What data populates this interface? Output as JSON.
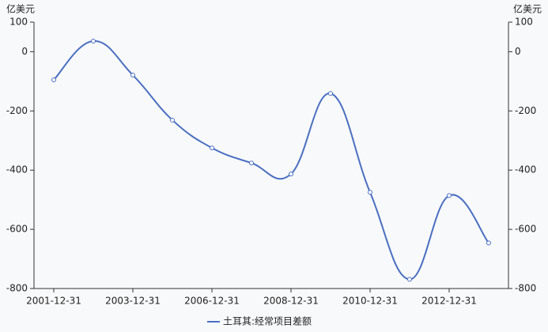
{
  "chart_data": {
    "type": "line",
    "y_label": "亿美元",
    "y2_label": "亿美元",
    "categories": [
      "2001-12-31",
      null,
      "2003-12-31",
      null,
      "2006-12-31",
      null,
      "2008-12-31",
      null,
      "2010-12-31",
      null,
      "2012-12-31",
      null
    ],
    "series": [
      {
        "name": "土耳其:经常项目差额",
        "color": "#4a6fc1",
        "values": [
          -95,
          36,
          -79,
          -231,
          -325,
          -376,
          -413,
          -141,
          -475,
          -769,
          -486,
          -646
        ]
      }
    ],
    "ylim": [
      -800,
      100
    ],
    "yticks": [
      100,
      0,
      -200,
      -400,
      -600,
      -800
    ],
    "y2lim": [
      -800,
      100
    ],
    "y2ticks": [
      100,
      0,
      -200,
      -400,
      -600,
      -800
    ],
    "legend": "bottom"
  }
}
